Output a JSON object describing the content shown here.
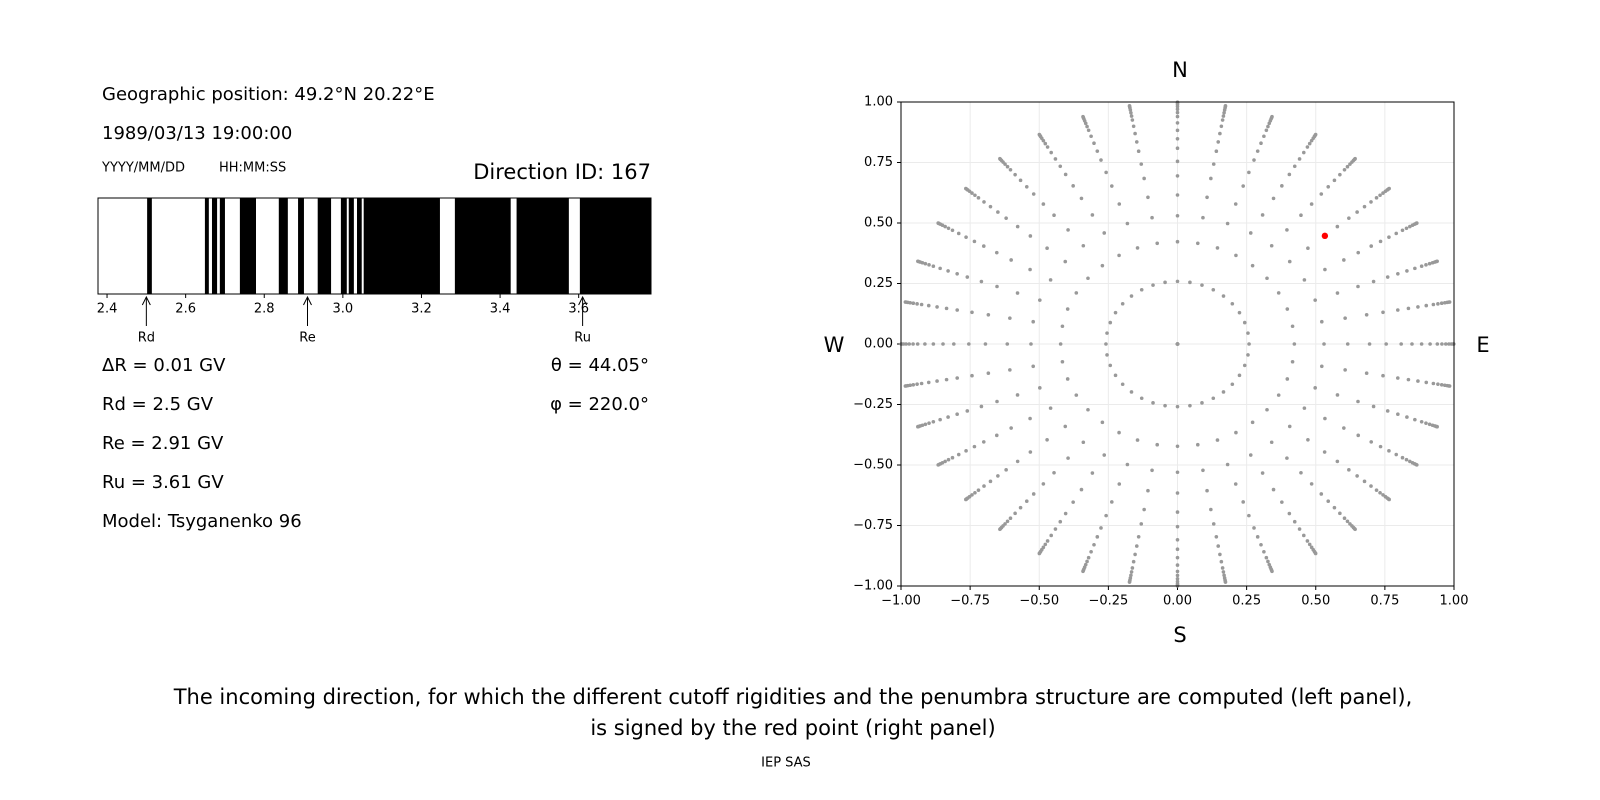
{
  "info": {
    "geographic_position": "Geographic position: 49.2°N 20.22°E",
    "datetime": "1989/03/13 19:00:00",
    "date_format": "YYYY/MM/DD",
    "time_format": "HH:MM:SS",
    "direction_id": "Direction ID: 167",
    "lines": [
      "ΔR = 0.01 GV",
      "Rd = 2.5 GV",
      "Re = 2.91 GV",
      "Ru = 3.61 GV",
      "Model: Tsyganenko 96"
    ],
    "angles": [
      "θ = 44.05°",
      "φ = 220.0°"
    ]
  },
  "chart_data": [
    {
      "type": "penumbra",
      "xlim": [
        2.377,
        3.784
      ],
      "xticks": [
        2.4,
        2.6,
        2.8,
        {
          "value": 3,
          "label": "3.0"
        },
        3.2,
        3.4,
        3.6
      ],
      "band_color": "#000000",
      "bands": [
        [
          2.502,
          2.514
        ],
        [
          2.649,
          2.659
        ],
        [
          2.667,
          2.68
        ],
        [
          2.687,
          2.7
        ],
        [
          2.738,
          2.779
        ],
        [
          2.837,
          2.86
        ],
        [
          2.886,
          2.901
        ],
        [
          2.936,
          2.97
        ],
        [
          2.995,
          3.01
        ],
        [
          3.015,
          3.028
        ],
        [
          3.036,
          3.048
        ],
        [
          3.053,
          3.247
        ],
        [
          3.285,
          3.427
        ],
        [
          3.442,
          3.575
        ],
        [
          3.603,
          3.783
        ]
      ],
      "markers": [
        {
          "label": "Rd",
          "value": 2.5
        },
        {
          "label": "Re",
          "value": 2.91
        },
        {
          "label": "Ru",
          "value": 3.61
        }
      ]
    },
    {
      "type": "scatter",
      "xlim": [
        -1,
        1
      ],
      "ylim": [
        -1,
        1
      ],
      "grid": true,
      "xticks": [
        {
          "value": -1,
          "label": "−1.00"
        },
        {
          "value": -0.75,
          "label": "−0.75"
        },
        {
          "value": -0.5,
          "label": "−0.50"
        },
        {
          "value": -0.25,
          "label": "−0.25"
        },
        {
          "value": 0,
          "label": "0.00"
        },
        {
          "value": 0.25,
          "label": "0.25"
        },
        {
          "value": 0.5,
          "label": "0.50"
        },
        {
          "value": 0.75,
          "label": "0.75"
        },
        {
          "value": 1,
          "label": "1.00"
        }
      ],
      "yticks": [
        {
          "value": -1,
          "label": "−1.00"
        },
        {
          "value": -0.75,
          "label": "−0.75"
        },
        {
          "value": -0.5,
          "label": "−0.50"
        },
        {
          "value": -0.25,
          "label": "−0.25"
        },
        {
          "value": 0,
          "label": "0.00"
        },
        {
          "value": 0.25,
          "label": "0.25"
        },
        {
          "value": 0.5,
          "label": "0.50"
        },
        {
          "value": 0.75,
          "label": "0.75"
        },
        {
          "value": 1,
          "label": "1.00"
        }
      ],
      "color": "#999999",
      "zenith_deg": [
        0,
        15,
        25,
        32,
        38,
        44,
        49,
        54,
        58,
        62,
        66,
        70,
        73,
        76,
        79,
        82,
        85,
        88
      ],
      "azimuth_deg": [
        0,
        10,
        20,
        30,
        40,
        50,
        60,
        70,
        80,
        90,
        100,
        110,
        120,
        130,
        140,
        150,
        160,
        170,
        180,
        190,
        200,
        210,
        220,
        230,
        240,
        250,
        260,
        270,
        280,
        290,
        300,
        310,
        320,
        330,
        340,
        350
      ],
      "highlight": {
        "x": 0.533,
        "y": 0.447,
        "color": "#ff0000"
      },
      "compass": {
        "north": "N",
        "south": "S",
        "west": "W",
        "east": "E"
      }
    }
  ],
  "caption": [
    "The incoming direction, for which the different cutoff rigidities and the penumbra structure are computed (left panel),",
    "is signed by the red point (right panel)"
  ],
  "footer": "IEP SAS"
}
